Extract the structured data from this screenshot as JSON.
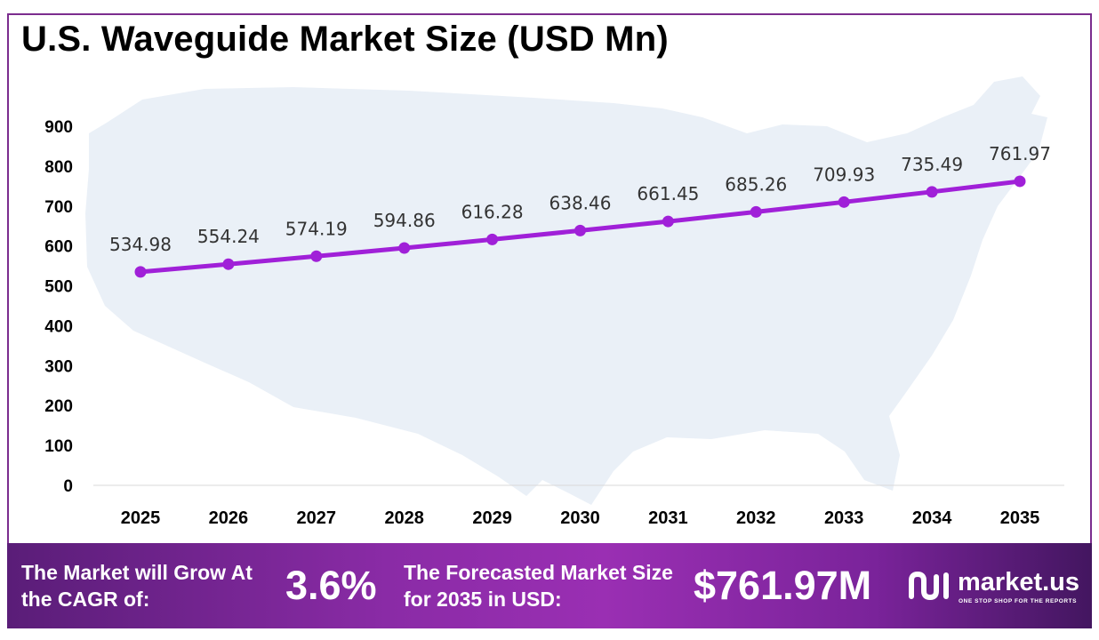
{
  "chart_data": {
    "type": "line",
    "title": "U.S. Waveguide Market Size (USD Mn)",
    "categories": [
      "2025",
      "2026",
      "2027",
      "2028",
      "2029",
      "2030",
      "2031",
      "2032",
      "2033",
      "2034",
      "2035"
    ],
    "series": [
      {
        "values": [
          534.98,
          554.24,
          574.19,
          594.86,
          616.28,
          638.46,
          661.45,
          685.26,
          709.93,
          735.49,
          761.97
        ]
      }
    ],
    "y_ticks": [
      0,
      100,
      200,
      300,
      400,
      500,
      600,
      700,
      800,
      900
    ],
    "ylim": [
      0,
      900
    ],
    "data_labels": true,
    "grid": false,
    "line_color": "#a020d8"
  },
  "footer": {
    "cagr_text": "The Market will Grow At the CAGR of:",
    "cagr_value": "3.6%",
    "forecast_text": "The Forecasted Market Size for 2035 in USD:",
    "forecast_value": "$761.97M"
  },
  "brand": {
    "name": "market.us",
    "tagline": "ONE STOP SHOP FOR THE REPORTS"
  }
}
